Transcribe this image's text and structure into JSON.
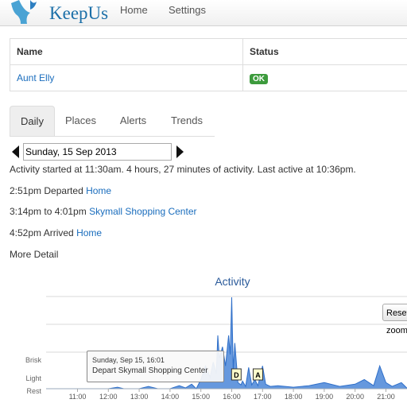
{
  "nav": {
    "brand": "KeepUs",
    "home": "Home",
    "settings": "Settings"
  },
  "table": {
    "headers": {
      "name": "Name",
      "status": "Status"
    },
    "rows": [
      {
        "name": "Aunt Elly",
        "status": "OK"
      }
    ]
  },
  "tabs": [
    "Daily",
    "Places",
    "Alerts",
    "Trends"
  ],
  "date": {
    "value": "Sunday, 15 Sep 2013"
  },
  "summary": "Activity started at 11:30am. 4 hours, 27 minutes of activity. Last active at 10:36pm.",
  "events": [
    {
      "time": "2:51pm",
      "text": "Departed",
      "place": "Home"
    },
    {
      "time": "3:14pm to 4:01pm",
      "text": "",
      "place": "Skymall Shopping Center"
    },
    {
      "time": "4:52pm",
      "text": "Arrived",
      "place": "Home"
    }
  ],
  "more_detail": "More Detail",
  "chart_data": {
    "type": "area",
    "title": "Activity",
    "y_labels": [
      "Brisk",
      "Light",
      "Rest"
    ],
    "x_ticks": [
      "11:00",
      "12:00",
      "13:00",
      "14:00",
      "15:00",
      "16:00",
      "17:00",
      "18:00",
      "19:00",
      "20:00",
      "21:00"
    ],
    "x_hours": [
      10.5,
      11.0,
      11.5,
      12.0,
      12.3,
      12.5,
      13.0,
      13.3,
      13.6,
      14.0,
      14.3,
      14.5,
      14.7,
      14.85,
      15.0,
      15.15,
      15.3,
      15.4,
      15.5,
      15.55,
      15.6,
      15.7,
      15.8,
      15.9,
      15.95,
      16.0,
      16.05,
      16.1,
      16.2,
      16.3,
      16.35,
      16.45,
      16.55,
      16.65,
      16.75,
      16.85,
      17.0,
      17.1,
      17.25,
      17.5,
      18.0,
      18.5,
      19.0,
      19.5,
      20.0,
      20.3,
      20.6,
      20.8,
      21.0,
      21.2,
      21.5,
      21.7
    ],
    "activity": [
      0,
      0,
      0,
      0,
      2,
      0,
      0,
      3,
      0,
      0,
      4,
      1,
      6,
      0,
      12,
      30,
      15,
      35,
      20,
      70,
      40,
      55,
      30,
      70,
      45,
      120,
      25,
      60,
      8,
      5,
      10,
      3,
      28,
      5,
      12,
      4,
      30,
      6,
      3,
      4,
      2,
      4,
      8,
      3,
      6,
      12,
      4,
      30,
      8,
      3,
      8,
      0
    ],
    "ylim": [
      0,
      120
    ],
    "markers": [
      {
        "label": "D",
        "hour": 16.15
      },
      {
        "label": "A",
        "hour": 16.85
      }
    ],
    "reset_label": "Reset zoom",
    "tooltip": {
      "date": "Sunday, Sep 15, 16:01",
      "text": "Depart Skymall Shopping Center"
    },
    "colors": {
      "fill": "#4a86d8",
      "stroke": "#2f6fc9",
      "marker_fill": "#ffffcc"
    }
  }
}
